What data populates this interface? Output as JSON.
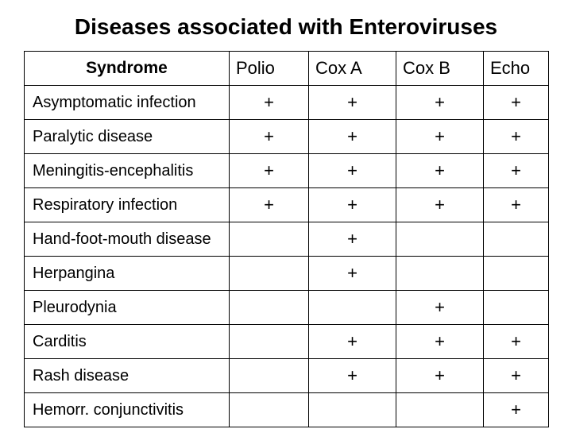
{
  "title": "Diseases associated with Enteroviruses",
  "table": {
    "syndrome_header": "Syndrome",
    "columns": [
      "Polio",
      "Cox A",
      "Cox B",
      "Echo"
    ],
    "rows": [
      {
        "syndrome": "Asymptomatic infection",
        "values": [
          "+",
          "+",
          "+",
          "+"
        ]
      },
      {
        "syndrome": "Paralytic disease",
        "values": [
          "+",
          "+",
          "+",
          "+"
        ]
      },
      {
        "syndrome": "Meningitis-encephalitis",
        "values": [
          "+",
          "+",
          "+",
          "+"
        ]
      },
      {
        "syndrome": "Respiratory infection",
        "values": [
          "+",
          "+",
          "+",
          "+"
        ]
      },
      {
        "syndrome": "Hand-foot-mouth disease",
        "values": [
          "",
          "+",
          "",
          ""
        ]
      },
      {
        "syndrome": "Herpangina",
        "values": [
          "",
          "+",
          "",
          ""
        ]
      },
      {
        "syndrome": "Pleurodynia",
        "values": [
          "",
          "",
          "+",
          ""
        ]
      },
      {
        "syndrome": "Carditis",
        "values": [
          "",
          "+",
          "+",
          "+"
        ]
      },
      {
        "syndrome": "Rash disease",
        "values": [
          "",
          "+",
          "+",
          "+"
        ]
      },
      {
        "syndrome": "Hemorr. conjunctivitis",
        "values": [
          "",
          "",
          "",
          "+"
        ]
      }
    ]
  },
  "style": {
    "title_fontsize": 28,
    "header_fontsize": 22,
    "cell_fontsize": 20,
    "text_color": "#000000",
    "border_color": "#000000",
    "background_color": "#ffffff",
    "column_widths": {
      "syndrome": 258,
      "polio": 100,
      "coxa": 110,
      "coxb": 110,
      "echo": 82
    }
  }
}
